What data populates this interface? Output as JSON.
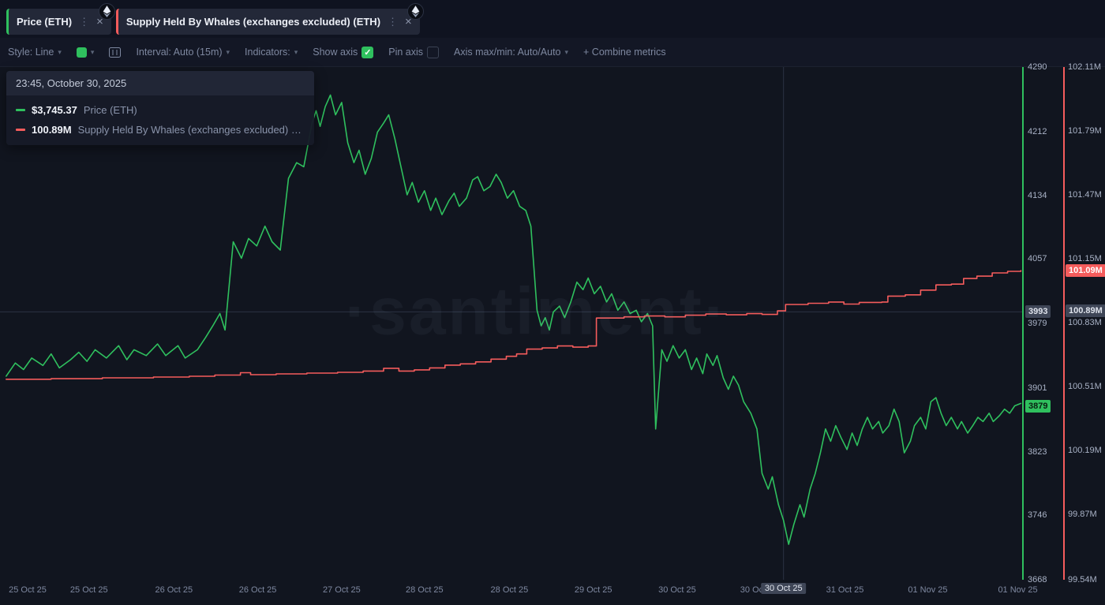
{
  "colors": {
    "green": "#2fc05e",
    "red": "#f55c5c",
    "gray_badge": "#3f4657",
    "background": "#131725",
    "chart_background": "#11151f",
    "crosshair": "#2b3343"
  },
  "tabs": [
    {
      "label": "Price (ETH)",
      "accent": "#2fc05e"
    },
    {
      "label": "Supply Held By Whales (exchanges excluded) (ETH)",
      "accent": "#f55c5c"
    }
  ],
  "toolbar": {
    "style_label": "Style: Line",
    "interval_label": "Interval: Auto (15m)",
    "indicators_label": "Indicators:",
    "show_axis_label": "Show axis",
    "show_axis_checked": true,
    "pin_axis_label": "Pin axis",
    "pin_axis_checked": false,
    "axis_maxmin_label": "Axis max/min: Auto/Auto",
    "combine_label": "+ Combine metrics",
    "swatch_color": "#2fc05e"
  },
  "tooltip": {
    "header": "23:45, October 30, 2025",
    "rows": [
      {
        "value": "$3,745.37",
        "label": "Price (ETH)",
        "color": "#2fc05e"
      },
      {
        "value": "100.89M",
        "label": "Supply Held By Whales (exchanges excluded) (ETH)",
        "color": "#f55c5c"
      }
    ]
  },
  "watermark": "·santiment·",
  "chart_data": {
    "type": "line",
    "legend": [
      "Price (ETH)",
      "Supply Held By Whales (exchanges excluded) (ETH)"
    ],
    "price_axis": {
      "min": 3668,
      "max": 4290,
      "ticks": [
        {
          "v": 4290,
          "label": "4290"
        },
        {
          "v": 4212,
          "label": "4212"
        },
        {
          "v": 4134,
          "label": "4134"
        },
        {
          "v": 4057,
          "label": "4057"
        },
        {
          "v": 3979,
          "label": "3979"
        },
        {
          "v": 3901,
          "label": "3901"
        },
        {
          "v": 3823,
          "label": "3823"
        },
        {
          "v": 3746,
          "label": "3746"
        },
        {
          "v": 3668,
          "label": "3668"
        }
      ],
      "crosshair": {
        "v": 3993,
        "label": "3993"
      },
      "current": {
        "v": 3879,
        "label": "3879"
      }
    },
    "supply_axis": {
      "min": 99.54,
      "max": 102.11,
      "ticks": [
        {
          "v": 102.11,
          "label": "102.11M"
        },
        {
          "v": 101.79,
          "label": "101.79M"
        },
        {
          "v": 101.47,
          "label": "101.47M"
        },
        {
          "v": 101.15,
          "label": "101.15M"
        },
        {
          "v": 100.83,
          "label": "100.83M"
        },
        {
          "v": 100.51,
          "label": "100.51M"
        },
        {
          "v": 100.19,
          "label": "100.19M"
        },
        {
          "v": 99.87,
          "label": "99.87M"
        },
        {
          "v": 99.54,
          "label": "99.54M"
        }
      ],
      "crosshair": {
        "v": 100.89,
        "label": "100.89M"
      },
      "current": {
        "v": 101.09,
        "label": "101.09M"
      }
    },
    "x_axis": {
      "labels": [
        {
          "text": "25 Oct 25",
          "x": 0.027
        },
        {
          "text": "25 Oct 25",
          "x": 0.087
        },
        {
          "text": "26 Oct 25",
          "x": 0.17
        },
        {
          "text": "26 Oct 25",
          "x": 0.252
        },
        {
          "text": "27 Oct 25",
          "x": 0.334
        },
        {
          "text": "28 Oct 25",
          "x": 0.415
        },
        {
          "text": "28 Oct 25",
          "x": 0.498
        },
        {
          "text": "29 Oct 25",
          "x": 0.58
        },
        {
          "text": "30 Oct 25",
          "x": 0.662
        },
        {
          "text": "30 Oct 25",
          "x": 0.742
        },
        {
          "text": "31 Oct 25",
          "x": 0.826
        },
        {
          "text": "01 Nov 25",
          "x": 0.907
        },
        {
          "text": "01 Nov 25",
          "x": 0.995
        }
      ],
      "highlight": {
        "text": "30 Oct 25",
        "x": 0.766
      }
    },
    "crosshair_x": 0.766,
    "series": [
      {
        "name": "Price (ETH)",
        "axis": "price",
        "color": "#2fc05e",
        "interp": "linear",
        "points": [
          [
            0.006,
            3915
          ],
          [
            0.015,
            3931
          ],
          [
            0.023,
            3923
          ],
          [
            0.031,
            3937
          ],
          [
            0.042,
            3928
          ],
          [
            0.05,
            3942
          ],
          [
            0.058,
            3925
          ],
          [
            0.069,
            3935
          ],
          [
            0.077,
            3944
          ],
          [
            0.085,
            3933
          ],
          [
            0.093,
            3947
          ],
          [
            0.104,
            3937
          ],
          [
            0.116,
            3952
          ],
          [
            0.124,
            3935
          ],
          [
            0.131,
            3947
          ],
          [
            0.143,
            3940
          ],
          [
            0.154,
            3954
          ],
          [
            0.162,
            3940
          ],
          [
            0.174,
            3952
          ],
          [
            0.181,
            3937
          ],
          [
            0.193,
            3947
          ],
          [
            0.201,
            3962
          ],
          [
            0.208,
            3976
          ],
          [
            0.215,
            3991
          ],
          [
            0.22,
            3971
          ],
          [
            0.228,
            4078
          ],
          [
            0.236,
            4058
          ],
          [
            0.243,
            4082
          ],
          [
            0.251,
            4073
          ],
          [
            0.259,
            4097
          ],
          [
            0.266,
            4078
          ],
          [
            0.274,
            4068
          ],
          [
            0.282,
            4155
          ],
          [
            0.29,
            4174
          ],
          [
            0.297,
            4169
          ],
          [
            0.305,
            4222
          ],
          [
            0.309,
            4237
          ],
          [
            0.313,
            4218
          ],
          [
            0.318,
            4242
          ],
          [
            0.323,
            4256
          ],
          [
            0.328,
            4232
          ],
          [
            0.334,
            4247
          ],
          [
            0.34,
            4198
          ],
          [
            0.346,
            4174
          ],
          [
            0.351,
            4189
          ],
          [
            0.357,
            4160
          ],
          [
            0.363,
            4179
          ],
          [
            0.369,
            4211
          ],
          [
            0.375,
            4222
          ],
          [
            0.38,
            4232
          ],
          [
            0.386,
            4203
          ],
          [
            0.392,
            4169
          ],
          [
            0.398,
            4135
          ],
          [
            0.403,
            4150
          ],
          [
            0.409,
            4126
          ],
          [
            0.415,
            4140
          ],
          [
            0.421,
            4116
          ],
          [
            0.426,
            4131
          ],
          [
            0.432,
            4111
          ],
          [
            0.439,
            4128
          ],
          [
            0.444,
            4137
          ],
          [
            0.449,
            4121
          ],
          [
            0.456,
            4131
          ],
          [
            0.462,
            4153
          ],
          [
            0.467,
            4157
          ],
          [
            0.473,
            4140
          ],
          [
            0.479,
            4145
          ],
          [
            0.485,
            4160
          ],
          [
            0.49,
            4150
          ],
          [
            0.496,
            4131
          ],
          [
            0.502,
            4140
          ],
          [
            0.508,
            4121
          ],
          [
            0.514,
            4116
          ],
          [
            0.519,
            4097
          ],
          [
            0.525,
            3995
          ],
          [
            0.529,
            3976
          ],
          [
            0.533,
            3986
          ],
          [
            0.537,
            3971
          ],
          [
            0.541,
            3993
          ],
          [
            0.547,
            4000
          ],
          [
            0.552,
            3986
          ],
          [
            0.558,
            4005
          ],
          [
            0.564,
            4029
          ],
          [
            0.57,
            4020
          ],
          [
            0.575,
            4034
          ],
          [
            0.581,
            4015
          ],
          [
            0.587,
            4024
          ],
          [
            0.593,
            4005
          ],
          [
            0.598,
            4015
          ],
          [
            0.604,
            3995
          ],
          [
            0.61,
            4005
          ],
          [
            0.616,
            3991
          ],
          [
            0.622,
            3995
          ],
          [
            0.627,
            3981
          ],
          [
            0.633,
            3991
          ],
          [
            0.638,
            3976
          ],
          [
            0.641,
            3851
          ],
          [
            0.647,
            3947
          ],
          [
            0.652,
            3933
          ],
          [
            0.658,
            3952
          ],
          [
            0.664,
            3937
          ],
          [
            0.67,
            3947
          ],
          [
            0.676,
            3923
          ],
          [
            0.681,
            3937
          ],
          [
            0.687,
            3918
          ],
          [
            0.691,
            3942
          ],
          [
            0.697,
            3928
          ],
          [
            0.701,
            3940
          ],
          [
            0.707,
            3913
          ],
          [
            0.712,
            3899
          ],
          [
            0.717,
            3915
          ],
          [
            0.722,
            3904
          ],
          [
            0.727,
            3884
          ],
          [
            0.734,
            3870
          ],
          [
            0.74,
            3851
          ],
          [
            0.745,
            3797
          ],
          [
            0.751,
            3778
          ],
          [
            0.755,
            3793
          ],
          [
            0.761,
            3759
          ],
          [
            0.766,
            3740
          ],
          [
            0.771,
            3711
          ],
          [
            0.776,
            3735
          ],
          [
            0.782,
            3759
          ],
          [
            0.786,
            3744
          ],
          [
            0.792,
            3778
          ],
          [
            0.797,
            3797
          ],
          [
            0.802,
            3822
          ],
          [
            0.807,
            3851
          ],
          [
            0.812,
            3836
          ],
          [
            0.817,
            3855
          ],
          [
            0.822,
            3841
          ],
          [
            0.828,
            3826
          ],
          [
            0.833,
            3846
          ],
          [
            0.838,
            3831
          ],
          [
            0.843,
            3851
          ],
          [
            0.848,
            3865
          ],
          [
            0.853,
            3851
          ],
          [
            0.859,
            3860
          ],
          [
            0.863,
            3846
          ],
          [
            0.869,
            3855
          ],
          [
            0.874,
            3875
          ],
          [
            0.879,
            3860
          ],
          [
            0.884,
            3822
          ],
          [
            0.89,
            3836
          ],
          [
            0.894,
            3855
          ],
          [
            0.9,
            3865
          ],
          [
            0.905,
            3851
          ],
          [
            0.91,
            3884
          ],
          [
            0.915,
            3889
          ],
          [
            0.92,
            3870
          ],
          [
            0.925,
            3855
          ],
          [
            0.93,
            3865
          ],
          [
            0.936,
            3851
          ],
          [
            0.94,
            3860
          ],
          [
            0.946,
            3846
          ],
          [
            0.951,
            3855
          ],
          [
            0.956,
            3865
          ],
          [
            0.961,
            3860
          ],
          [
            0.967,
            3870
          ],
          [
            0.971,
            3860
          ],
          [
            0.977,
            3867
          ],
          [
            0.982,
            3875
          ],
          [
            0.987,
            3870
          ],
          [
            0.992,
            3879
          ],
          [
            0.998,
            3882
          ]
        ]
      },
      {
        "name": "Supply Held By Whales (exchanges excluded) (ETH)",
        "axis": "supply",
        "color": "#f55c5c",
        "interp": "step",
        "points": [
          [
            0.006,
            100.545
          ],
          [
            0.05,
            100.548
          ],
          [
            0.1,
            100.552
          ],
          [
            0.15,
            100.556
          ],
          [
            0.185,
            100.56
          ],
          [
            0.21,
            100.566
          ],
          [
            0.235,
            100.578
          ],
          [
            0.245,
            100.568
          ],
          [
            0.27,
            100.572
          ],
          [
            0.3,
            100.576
          ],
          [
            0.33,
            100.58
          ],
          [
            0.355,
            100.586
          ],
          [
            0.375,
            100.6
          ],
          [
            0.39,
            100.586
          ],
          [
            0.405,
            100.592
          ],
          [
            0.42,
            100.602
          ],
          [
            0.435,
            100.616
          ],
          [
            0.45,
            100.622
          ],
          [
            0.465,
            100.632
          ],
          [
            0.48,
            100.646
          ],
          [
            0.495,
            100.66
          ],
          [
            0.505,
            100.672
          ],
          [
            0.515,
            100.696
          ],
          [
            0.53,
            100.702
          ],
          [
            0.545,
            100.712
          ],
          [
            0.56,
            100.706
          ],
          [
            0.575,
            100.712
          ],
          [
            0.583,
            100.852
          ],
          [
            0.61,
            100.858
          ],
          [
            0.63,
            100.862
          ],
          [
            0.65,
            100.858
          ],
          [
            0.67,
            100.866
          ],
          [
            0.69,
            100.872
          ],
          [
            0.71,
            100.868
          ],
          [
            0.73,
            100.874
          ],
          [
            0.745,
            100.87
          ],
          [
            0.76,
            100.888
          ],
          [
            0.768,
            100.92
          ],
          [
            0.79,
            100.926
          ],
          [
            0.81,
            100.932
          ],
          [
            0.825,
            100.922
          ],
          [
            0.84,
            100.93
          ],
          [
            0.862,
            100.932
          ],
          [
            0.868,
            100.962
          ],
          [
            0.885,
            100.968
          ],
          [
            0.9,
            100.992
          ],
          [
            0.915,
            101.018
          ],
          [
            0.93,
            101.022
          ],
          [
            0.942,
            101.05
          ],
          [
            0.955,
            101.062
          ],
          [
            0.97,
            101.078
          ],
          [
            0.985,
            101.086
          ],
          [
            0.998,
            101.09
          ]
        ]
      }
    ]
  }
}
